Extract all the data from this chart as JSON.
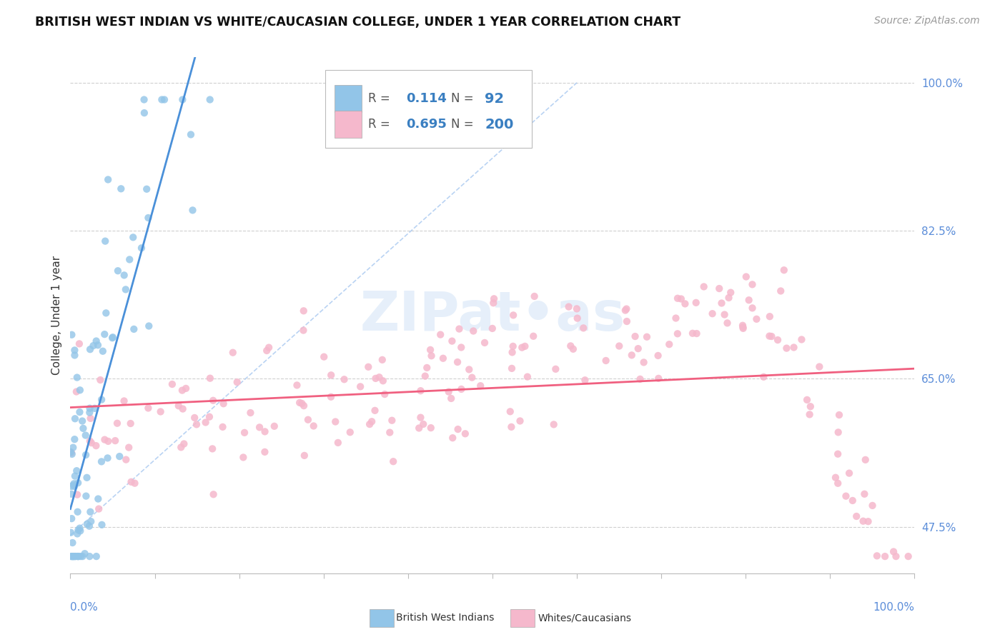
{
  "title": "BRITISH WEST INDIAN VS WHITE/CAUCASIAN COLLEGE, UNDER 1 YEAR CORRELATION CHART",
  "source": "Source: ZipAtlas.com",
  "ylabel": "College, Under 1 year",
  "y_min": 0.42,
  "y_max": 1.03,
  "y_ticks": [
    0.475,
    0.65,
    0.825,
    1.0
  ],
  "y_tick_labels": [
    "47.5%",
    "65.0%",
    "82.5%",
    "100.0%"
  ],
  "blue_R": "0.114",
  "blue_N": "92",
  "pink_R": "0.695",
  "pink_N": "200",
  "blue_color": "#92c5e8",
  "pink_color": "#f5b8cc",
  "blue_line_color": "#4a90d9",
  "pink_line_color": "#f06080",
  "diag_color": "#a8c8f0",
  "legend_label_blue": "British West Indians",
  "legend_label_pink": "Whites/Caucasians",
  "title_fontsize": 12.5,
  "axis_label_fontsize": 11,
  "tick_fontsize": 11,
  "source_fontsize": 10,
  "background_color": "#ffffff",
  "grid_color": "#d0d0d0",
  "blue_scatter_seed": 42,
  "pink_scatter_seed": 7
}
